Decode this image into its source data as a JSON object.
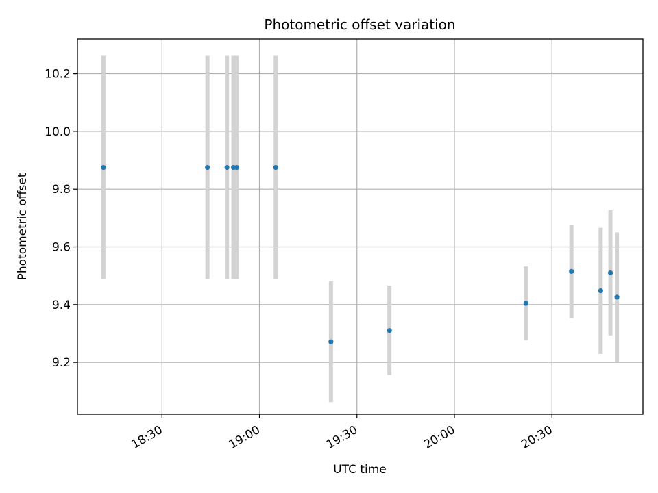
{
  "chart_data": {
    "type": "scatter",
    "title": "Photometric offset variation",
    "xlabel": "UTC time",
    "ylabel": "Photometric offset",
    "x_is_time": true,
    "x_range": [
      "18:04",
      "20:58"
    ],
    "ylim": [
      9.02,
      10.32
    ],
    "x_ticks": [
      "18:30",
      "19:00",
      "19:30",
      "20:00",
      "20:30"
    ],
    "y_ticks": [
      9.2,
      9.4,
      9.6,
      9.8,
      10.0,
      10.2
    ],
    "y_tick_labels": [
      "9.2",
      "9.4",
      "9.6",
      "9.8",
      "10.0",
      "10.2"
    ],
    "grid": true,
    "colors": {
      "marker": "#1f77b4",
      "errorbar": "#d3d3d3",
      "grid": "#b0b0b0"
    },
    "series": [
      {
        "points": [
          {
            "x": "18:12",
            "y": 9.875,
            "ylow": 9.488,
            "yhigh": 10.262
          },
          {
            "x": "18:44",
            "y": 9.875,
            "ylow": 9.488,
            "yhigh": 10.262
          },
          {
            "x": "18:50",
            "y": 9.875,
            "ylow": 9.488,
            "yhigh": 10.262
          },
          {
            "x": "18:52",
            "y": 9.875,
            "ylow": 9.488,
            "yhigh": 10.262
          },
          {
            "x": "18:53",
            "y": 9.875,
            "ylow": 9.488,
            "yhigh": 10.262
          },
          {
            "x": "19:05",
            "y": 9.875,
            "ylow": 9.488,
            "yhigh": 10.262
          },
          {
            "x": "19:22",
            "y": 9.271,
            "ylow": 9.062,
            "yhigh": 9.48
          },
          {
            "x": "19:40",
            "y": 9.31,
            "ylow": 9.156,
            "yhigh": 9.466
          },
          {
            "x": "20:22",
            "y": 9.404,
            "ylow": 9.276,
            "yhigh": 9.532
          },
          {
            "x": "20:36",
            "y": 9.515,
            "ylow": 9.353,
            "yhigh": 9.677
          },
          {
            "x": "20:45",
            "y": 9.448,
            "ylow": 9.229,
            "yhigh": 9.666
          },
          {
            "x": "20:48",
            "y": 9.51,
            "ylow": 9.293,
            "yhigh": 9.727
          },
          {
            "x": "20:50",
            "y": 9.426,
            "ylow": 9.202,
            "yhigh": 9.65
          }
        ]
      }
    ]
  }
}
